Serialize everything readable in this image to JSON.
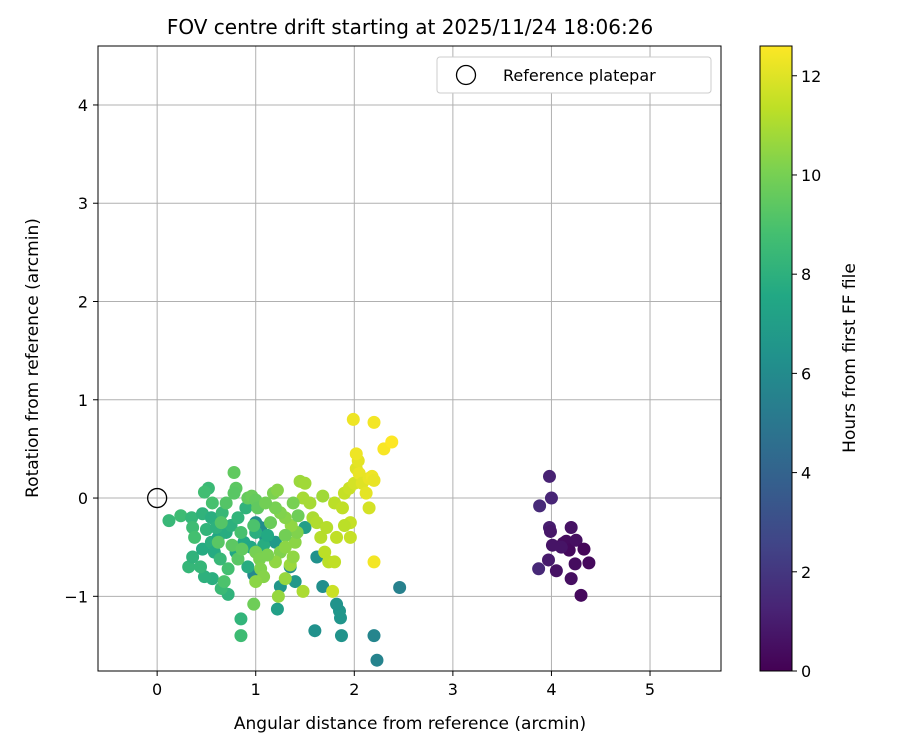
{
  "chart_data": {
    "type": "scatter",
    "title": "FOV centre drift starting at 2025/11/24 18:06:26",
    "xlabel": "Angular distance from reference (arcmin)",
    "ylabel": "Rotation from reference (arcmin)",
    "xlim": [
      -0.6,
      5.72
    ],
    "ylim": [
      -1.76,
      4.6
    ],
    "xticks": [
      "0",
      "1",
      "2",
      "3",
      "4",
      "5"
    ],
    "yticks": [
      "−1",
      "0",
      "1",
      "2",
      "3",
      "4"
    ],
    "grid": true,
    "legend": {
      "placement": "top-right",
      "entries": [
        "Reference platepar"
      ]
    },
    "reference_point": {
      "x": 0.0,
      "y": 0.0,
      "style": "open circle"
    },
    "colorbar": {
      "label": "Hours from first FF file",
      "colormap": "viridis",
      "range": [
        0,
        12.6
      ],
      "ticks": [
        "0",
        "2",
        "4",
        "6",
        "8",
        "10",
        "12"
      ]
    },
    "points": [
      [
        3.98,
        0.22,
        1.2
      ],
      [
        3.88,
        -0.08,
        1.5
      ],
      [
        4.0,
        0.0,
        1.3
      ],
      [
        3.98,
        -0.3,
        1.0
      ],
      [
        3.99,
        -0.34,
        0.8
      ],
      [
        4.01,
        -0.48,
        0.7
      ],
      [
        3.97,
        -0.63,
        0.9
      ],
      [
        3.87,
        -0.72,
        1.4
      ],
      [
        4.05,
        -0.74,
        0.6
      ],
      [
        4.12,
        -0.46,
        0.5
      ],
      [
        4.15,
        -0.44,
        0.4
      ],
      [
        4.18,
        -0.53,
        0.3
      ],
      [
        4.2,
        -0.3,
        0.6
      ],
      [
        4.25,
        -0.43,
        0.5
      ],
      [
        4.33,
        -0.52,
        0.2
      ],
      [
        4.38,
        -0.66,
        0.3
      ],
      [
        4.24,
        -0.67,
        0.4
      ],
      [
        4.2,
        -0.82,
        0.5
      ],
      [
        4.3,
        -0.99,
        0.3
      ],
      [
        4.1,
        -0.5,
        0.7
      ],
      [
        2.23,
        -1.65,
        5.6
      ],
      [
        2.2,
        -1.4,
        5.7
      ],
      [
        2.46,
        -0.91,
        5.5
      ],
      [
        1.87,
        -1.4,
        6.4
      ],
      [
        1.6,
        -1.35,
        6.3
      ],
      [
        1.86,
        -1.22,
        6.5
      ],
      [
        1.85,
        -1.15,
        6.6
      ],
      [
        1.82,
        -1.08,
        6.4
      ],
      [
        1.68,
        -0.9,
        6.2
      ],
      [
        1.62,
        -0.6,
        6.3
      ],
      [
        1.35,
        -0.7,
        6.0
      ],
      [
        1.25,
        -0.9,
        6.6
      ],
      [
        1.22,
        -1.13,
        7.1
      ],
      [
        1.2,
        -0.45,
        6.8
      ],
      [
        1.1,
        -0.4,
        6.5
      ],
      [
        1.05,
        -0.3,
        6.1
      ],
      [
        1.0,
        -0.25,
        6.2
      ],
      [
        0.98,
        -0.78,
        5.9
      ],
      [
        1.4,
        -0.85,
        6.7
      ],
      [
        1.5,
        -0.3,
        7.0
      ],
      [
        0.85,
        -1.4,
        8.6
      ],
      [
        0.85,
        -1.23,
        8.2
      ],
      [
        0.72,
        -0.98,
        8.1
      ],
      [
        0.65,
        -0.92,
        8.5
      ],
      [
        0.56,
        -0.82,
        7.9
      ],
      [
        0.48,
        -0.8,
        8.0
      ],
      [
        0.44,
        -0.7,
        8.3
      ],
      [
        0.32,
        -0.7,
        8.3
      ],
      [
        0.36,
        -0.6,
        8.1
      ],
      [
        0.46,
        -0.52,
        7.7
      ],
      [
        0.55,
        -0.45,
        7.9
      ],
      [
        0.62,
        -0.4,
        7.5
      ],
      [
        0.7,
        -0.35,
        7.8
      ],
      [
        0.75,
        -0.28,
        8.0
      ],
      [
        0.12,
        -0.23,
        8.4
      ],
      [
        0.24,
        -0.18,
        8.6
      ],
      [
        0.35,
        -0.2,
        8.3
      ],
      [
        0.46,
        -0.16,
        8.1
      ],
      [
        0.55,
        -0.2,
        7.9
      ],
      [
        0.66,
        -0.15,
        8.4
      ],
      [
        0.36,
        -0.3,
        8.6
      ],
      [
        0.38,
        -0.4,
        8.8
      ],
      [
        0.5,
        -0.32,
        8.2
      ],
      [
        0.6,
        -0.3,
        8.0
      ],
      [
        0.58,
        -0.55,
        7.7
      ],
      [
        0.64,
        -0.62,
        8.4
      ],
      [
        0.72,
        -0.72,
        8.8
      ],
      [
        0.68,
        -0.85,
        9.0
      ],
      [
        0.8,
        -0.55,
        7.5
      ],
      [
        0.88,
        -0.45,
        7.6
      ],
      [
        0.92,
        -0.7,
        7.8
      ],
      [
        0.95,
        -0.5,
        7.5
      ],
      [
        1.0,
        -0.35,
        7.9
      ],
      [
        1.08,
        -0.48,
        7.8
      ],
      [
        1.12,
        -0.38,
        7.6
      ],
      [
        0.82,
        -0.2,
        8.2
      ],
      [
        0.9,
        -0.1,
        8.1
      ],
      [
        0.52,
        0.1,
        8.5
      ],
      [
        0.48,
        0.06,
        8.7
      ],
      [
        0.56,
        -0.05,
        8.9
      ],
      [
        0.7,
        -0.05,
        9.2
      ],
      [
        0.78,
        0.26,
        9.5
      ],
      [
        0.8,
        0.1,
        9.4
      ],
      [
        0.78,
        0.05,
        9.3
      ],
      [
        0.92,
        0.0,
        9.6
      ],
      [
        0.96,
        0.02,
        9.7
      ],
      [
        1.0,
        -0.02,
        9.6
      ],
      [
        1.02,
        -0.1,
        9.5
      ],
      [
        0.98,
        -0.28,
        9.0
      ],
      [
        0.85,
        -0.35,
        8.9
      ],
      [
        0.65,
        -0.25,
        9.2
      ],
      [
        0.62,
        -0.45,
        9.3
      ],
      [
        0.76,
        -0.48,
        9.4
      ],
      [
        0.82,
        -0.62,
        9.3
      ],
      [
        0.86,
        -0.52,
        9.5
      ],
      [
        1.0,
        -0.55,
        10.0
      ],
      [
        1.04,
        -0.62,
        10.1
      ],
      [
        1.05,
        -0.72,
        10.2
      ],
      [
        1.08,
        -0.8,
        10.3
      ],
      [
        1.0,
        -0.85,
        10.4
      ],
      [
        0.98,
        -1.08,
        9.8
      ],
      [
        1.23,
        -1.0,
        10.6
      ],
      [
        1.3,
        -0.82,
        10.6
      ],
      [
        1.35,
        -0.68,
        10.7
      ],
      [
        1.38,
        -0.6,
        10.5
      ],
      [
        1.4,
        -0.45,
        10.4
      ],
      [
        1.42,
        -0.35,
        10.2
      ],
      [
        1.36,
        -0.28,
        10.5
      ],
      [
        1.3,
        -0.2,
        10.3
      ],
      [
        1.25,
        -0.15,
        10.2
      ],
      [
        1.2,
        -0.1,
        10.0
      ],
      [
        1.18,
        0.05,
        10.1
      ],
      [
        1.22,
        0.08,
        10.3
      ],
      [
        1.1,
        -0.05,
        9.9
      ],
      [
        1.25,
        -0.55,
        10.2
      ],
      [
        1.2,
        -0.65,
        10.5
      ],
      [
        1.12,
        -0.58,
        10.1
      ],
      [
        1.48,
        -0.95,
        11.0
      ],
      [
        1.45,
        0.17,
        10.7
      ],
      [
        1.5,
        0.15,
        10.8
      ],
      [
        1.48,
        0.0,
        10.9
      ],
      [
        1.55,
        -0.05,
        10.9
      ],
      [
        1.58,
        -0.2,
        11.0
      ],
      [
        1.62,
        -0.25,
        11.1
      ],
      [
        1.66,
        -0.4,
        11.2
      ],
      [
        1.7,
        -0.55,
        11.3
      ],
      [
        1.74,
        -0.65,
        11.3
      ],
      [
        1.78,
        -0.95,
        11.6
      ],
      [
        1.8,
        -0.65,
        11.4
      ],
      [
        1.82,
        -0.4,
        11.4
      ],
      [
        1.72,
        -0.3,
        11.2
      ],
      [
        1.68,
        0.02,
        10.8
      ],
      [
        1.8,
        -0.05,
        11.3
      ],
      [
        1.88,
        -0.1,
        11.4
      ],
      [
        1.9,
        0.05,
        11.5
      ],
      [
        1.95,
        0.1,
        11.6
      ],
      [
        1.96,
        -0.25,
        11.5
      ],
      [
        1.9,
        -0.28,
        11.3
      ],
      [
        1.96,
        -0.4,
        11.5
      ],
      [
        2.0,
        0.15,
        11.8
      ],
      [
        2.02,
        0.3,
        12.0
      ],
      [
        2.04,
        0.38,
        12.1
      ],
      [
        2.02,
        0.45,
        12.3
      ],
      [
        1.99,
        0.8,
        12.3
      ],
      [
        2.05,
        0.25,
        12.2
      ],
      [
        2.08,
        0.15,
        12.0
      ],
      [
        2.12,
        0.05,
        12.1
      ],
      [
        2.15,
        0.2,
        12.2
      ],
      [
        2.18,
        0.22,
        12.3
      ],
      [
        2.2,
        0.18,
        12.2
      ],
      [
        2.2,
        0.77,
        12.4
      ],
      [
        2.3,
        0.5,
        12.5
      ],
      [
        2.38,
        0.57,
        12.6
      ],
      [
        2.15,
        -0.1,
        11.8
      ],
      [
        2.2,
        -0.65,
        12.4
      ],
      [
        1.38,
        -0.05,
        10.0
      ],
      [
        1.43,
        -0.18,
        9.8
      ],
      [
        1.3,
        -0.38,
        9.9
      ],
      [
        1.15,
        -0.25,
        9.7
      ],
      [
        1.3,
        -0.5,
        10.4
      ]
    ]
  }
}
